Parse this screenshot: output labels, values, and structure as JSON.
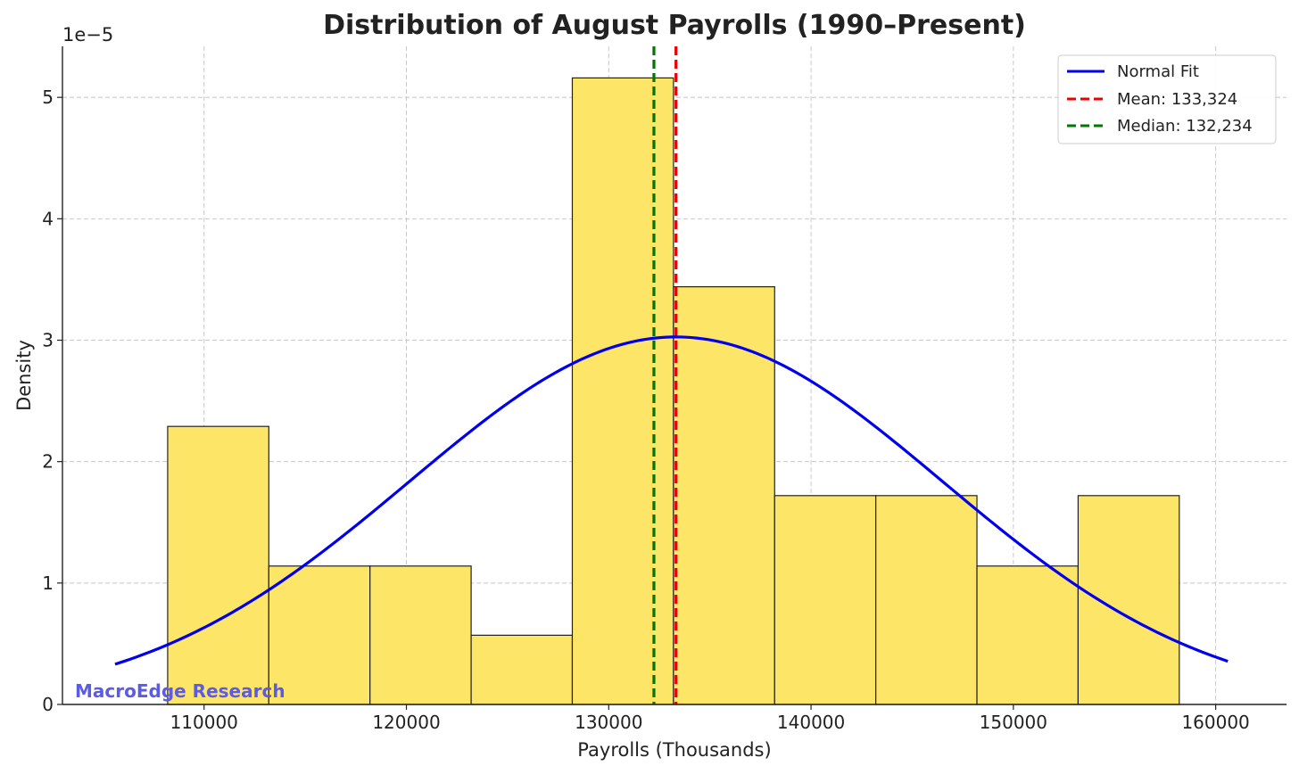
{
  "chart_data": {
    "type": "bar",
    "title": "Distribution of August Payrolls (1990–Present)",
    "xlabel": "Payrolls (Thousands)",
    "ylabel": "Density",
    "y_offset_label": "1e−5",
    "xlim": [
      103000,
      163500
    ],
    "ylim": [
      0,
      5.42
    ],
    "y_scale_exponent": -5,
    "xticks": [
      110000,
      120000,
      130000,
      140000,
      150000,
      160000
    ],
    "yticks": [
      0,
      1,
      2,
      3,
      4,
      5
    ],
    "grid": true,
    "histogram": {
      "bin_edges": [
        108200,
        113200,
        118200,
        123200,
        128200,
        133200,
        138200,
        143200,
        148200,
        153200,
        158200
      ],
      "densities": [
        2.29,
        1.14,
        1.14,
        0.57,
        5.16,
        3.44,
        1.72,
        1.72,
        1.14,
        1.72
      ],
      "color": "#fde567",
      "edge_color": "#222222"
    },
    "normal_fit": {
      "label": "Normal Fit",
      "mean": 133324,
      "std": 13180,
      "x_range": [
        105600,
        160600
      ],
      "color": "#0000ee"
    },
    "vlines": [
      {
        "label": "Mean: 133,324",
        "x": 133324,
        "color": "#ee0000"
      },
      {
        "label": "Median: 132,234",
        "x": 132234,
        "color": "#007700"
      }
    ],
    "legend_position": "upper right",
    "watermark": "MacroEdge Research"
  }
}
